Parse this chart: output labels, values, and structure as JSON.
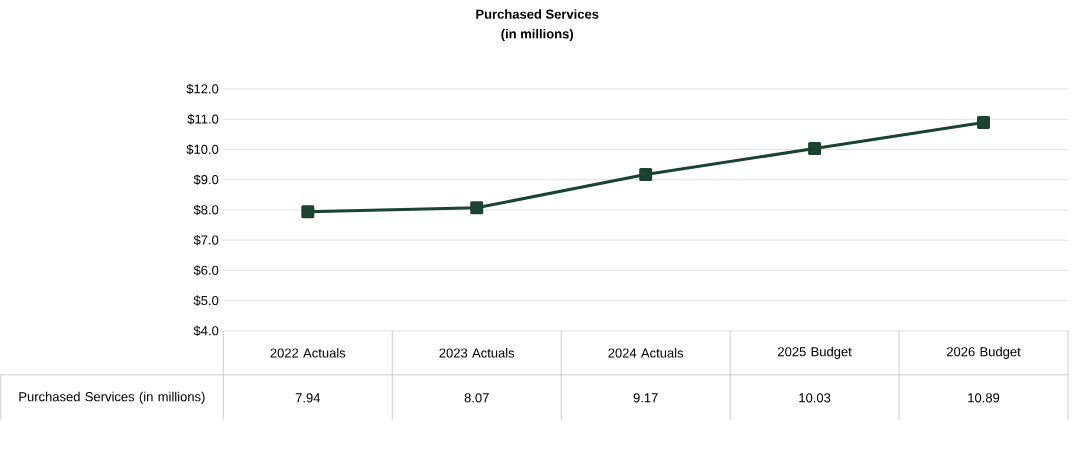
{
  "chart_data": {
    "type": "line",
    "title": "Purchased Services",
    "subtitle": "(in millions)",
    "categories": [
      "2022 Actuals",
      "2023 Actuals",
      "2024 Actuals",
      "2025 Budget",
      "2026 Budget"
    ],
    "series": [
      {
        "name": "Purchased Services (in millions)",
        "color": "#1b4334",
        "values": [
          7.94,
          8.07,
          9.17,
          10.03,
          10.89
        ]
      }
    ],
    "ylim": [
      4,
      12
    ],
    "yticks": [
      {
        "value": 4,
        "label": "$4.0"
      },
      {
        "value": 5,
        "label": "$5.0"
      },
      {
        "value": 6,
        "label": "$6.0"
      },
      {
        "value": 7,
        "label": "$7.0"
      },
      {
        "value": 8,
        "label": "$8.0"
      },
      {
        "value": 9,
        "label": "$9.0"
      },
      {
        "value": 10,
        "label": "$10.0"
      },
      {
        "value": 11,
        "label": "$11.0"
      },
      {
        "value": 12,
        "label": "$12.0"
      }
    ],
    "grid": "y",
    "marker": "square",
    "data_labels": true
  }
}
